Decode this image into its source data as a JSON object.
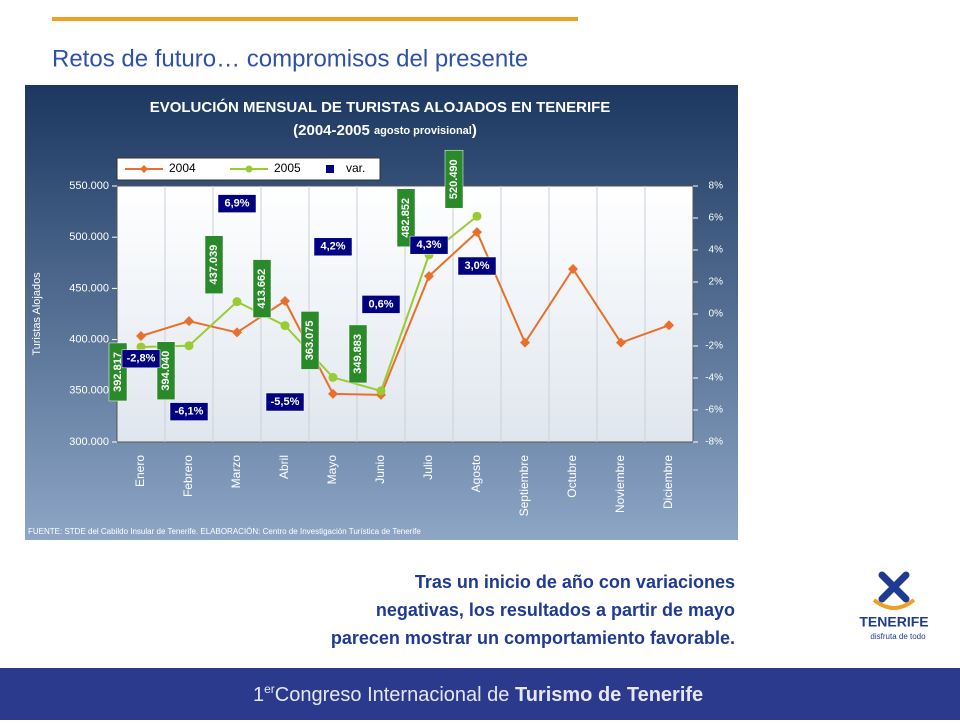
{
  "slide": {
    "title": "Retos de futuro… compromisos del presente",
    "body_lines": [
      "Tras un inicio de año con variaciones",
      "negativas, los resultados a partir de mayo",
      "parecen mostrar un comportamiento favorable."
    ],
    "footer": {
      "number": "1",
      "superscript": "er",
      "text": "Congreso Internacional de",
      "bold": "Turismo de Tenerife"
    },
    "logo": {
      "name": "TENERIFE",
      "tagline": "disfruta de todo"
    }
  },
  "chart_data": {
    "type": "line",
    "title": "EVOLUCIÓN MENSUAL DE TURISTAS ALOJADOS EN TENERIFE",
    "subtitle_main": "(2004-2005",
    "subtitle_small": "agosto provisional",
    "subtitle_end": ")",
    "ylabel": "Turistas Alojados",
    "source": "FUENTE: STDE del Cabildo Insular de Tenerife. ELABORACIÓN: Centro de Investigación Turística de Tenerife",
    "categories": [
      "Enero",
      "Febrero",
      "Marzo",
      "Abril",
      "Mayo",
      "Junio",
      "Julio",
      "Agosto",
      "Septiembre",
      "Octubre",
      "Noviembre",
      "Diciembre"
    ],
    "series": [
      {
        "name": "2004",
        "color": "#e8702a",
        "values": [
          403500,
          418000,
          407000,
          437700,
          347000,
          346000,
          462000,
          505000,
          397000,
          469000,
          397000,
          414000
        ]
      },
      {
        "name": "2005",
        "color": "#99cc33",
        "values": [
          392817,
          394040,
          437039,
          413662,
          363075,
          349883,
          482852,
          520490,
          null,
          null,
          null,
          null
        ],
        "value_labels": [
          "392.817",
          "394.040",
          "437.039",
          "413.662",
          "363.075",
          "349.883",
          "482.852",
          "520.490",
          null,
          null,
          null,
          null
        ]
      },
      {
        "name": "var.",
        "color": "#000080",
        "axis": "y2",
        "values": [
          -2.8,
          -6.1,
          6.9,
          -5.5,
          4.2,
          0.6,
          4.3,
          3.0,
          null,
          null,
          null,
          null
        ],
        "value_labels": [
          "-2,8%",
          "-6,1%",
          "6,9%",
          "-5,5%",
          "4,2%",
          "0,6%",
          "4,3%",
          "3,0%",
          null,
          null,
          null,
          null
        ]
      }
    ],
    "ylim": [
      300000,
      550000
    ],
    "yticks": [
      {
        "value": 300000,
        "label": "300.000"
      },
      {
        "value": 350000,
        "label": "350.000"
      },
      {
        "value": 400000,
        "label": "400.000"
      },
      {
        "value": 450000,
        "label": "450.000"
      },
      {
        "value": 500000,
        "label": "500.000"
      },
      {
        "value": 550000,
        "label": "550.000"
      }
    ],
    "y2lim": [
      -8,
      8
    ],
    "y2ticks": [
      {
        "value": -8,
        "label": "-8%"
      },
      {
        "value": -6,
        "label": "-6%"
      },
      {
        "value": -4,
        "label": "-4%"
      },
      {
        "value": -2,
        "label": "-2%"
      },
      {
        "value": 0,
        "label": "0%"
      },
      {
        "value": 2,
        "label": "2%"
      },
      {
        "value": 4,
        "label": "4%"
      },
      {
        "value": 6,
        "label": "6%"
      },
      {
        "value": 8,
        "label": "8%"
      }
    ]
  }
}
